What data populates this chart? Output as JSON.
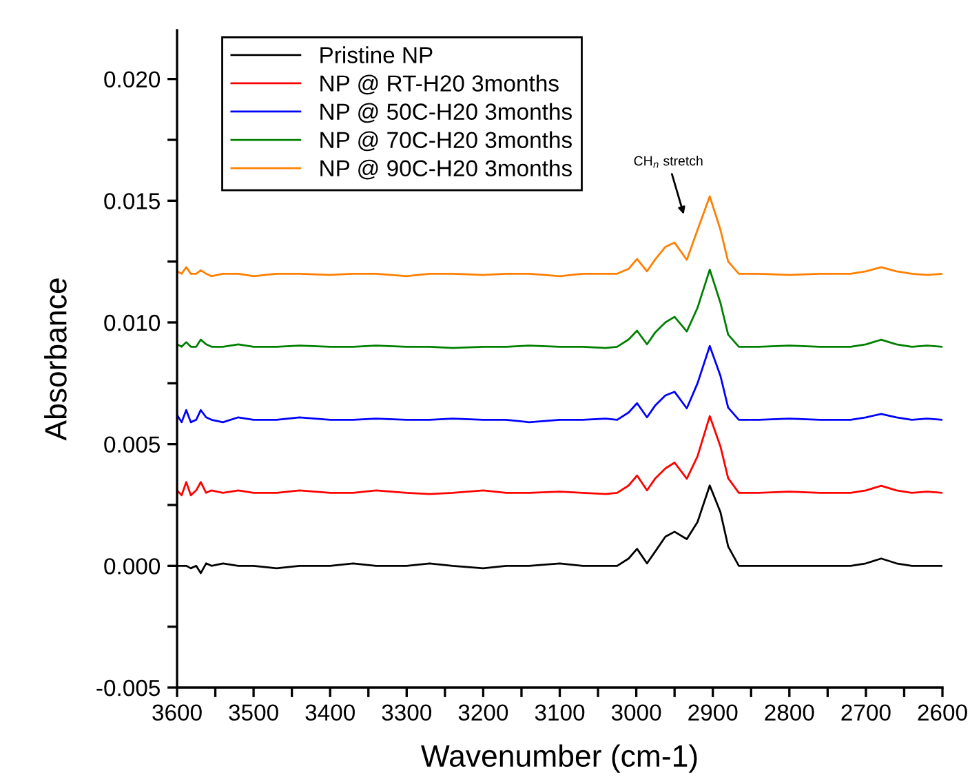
{
  "chart_data": {
    "type": "line",
    "xlabel": "Wavenumber (cm-1)",
    "ylabel": "Absorbance",
    "x": [
      3600,
      3594,
      3588,
      3582,
      3575,
      3569,
      3562,
      3555,
      3540,
      3520,
      3500,
      3470,
      3440,
      3400,
      3370,
      3340,
      3300,
      3270,
      3240,
      3200,
      3170,
      3140,
      3100,
      3070,
      3040,
      3025,
      3010,
      2999,
      2986,
      2975,
      2962,
      2950,
      2934,
      2920,
      2904,
      2890,
      2880,
      2866,
      2840,
      2800,
      2760,
      2720,
      2700,
      2680,
      2660,
      2640,
      2620,
      2600
    ],
    "series": [
      {
        "name": "Pristine NP",
        "color": "#000000",
        "values": [
          0,
          0,
          0,
          -0.0001,
          0,
          -0.0003,
          0.0001,
          0,
          0.0001,
          0,
          0,
          -0.0001,
          0,
          0,
          0.0001,
          0,
          0,
          0.0001,
          0,
          -0.0001,
          0,
          0,
          0.0001,
          0,
          0,
          0,
          0.0003,
          0.0007,
          0.0001,
          0.0006,
          0.0012,
          0.0014,
          0.0011,
          0.0018,
          0.0033,
          0.0022,
          0.0008,
          0,
          0,
          0,
          0,
          0,
          0.0001,
          0.0003,
          0.0001,
          0,
          0,
          0
        ]
      },
      {
        "name": "NP @ RT-H20 3months",
        "color": "#ff0000",
        "values": [
          0.0031,
          0.0029,
          0.00344,
          0.0029,
          0.0031,
          0.00344,
          0.003,
          0.0031,
          0.003,
          0.0031,
          0.003,
          0.003,
          0.0031,
          0.003,
          0.003,
          0.0031,
          0.003,
          0.00295,
          0.003,
          0.0031,
          0.003,
          0.003,
          0.00305,
          0.003,
          0.00295,
          0.003,
          0.0033,
          0.00371,
          0.0031,
          0.0036,
          0.004,
          0.00424,
          0.00358,
          0.0045,
          0.00615,
          0.0049,
          0.0036,
          0.003,
          0.003,
          0.00305,
          0.003,
          0.003,
          0.0031,
          0.00329,
          0.0031,
          0.003,
          0.00305,
          0.003
        ]
      },
      {
        "name": "NP @ 50C-H20 3months",
        "color": "#0000ff",
        "values": [
          0.0062,
          0.0059,
          0.0064,
          0.0059,
          0.006,
          0.0064,
          0.0061,
          0.006,
          0.0059,
          0.0061,
          0.006,
          0.006,
          0.0061,
          0.006,
          0.006,
          0.00605,
          0.006,
          0.006,
          0.00605,
          0.006,
          0.006,
          0.0059,
          0.006,
          0.006,
          0.00605,
          0.006,
          0.0063,
          0.00668,
          0.0061,
          0.0066,
          0.007,
          0.00715,
          0.00647,
          0.0075,
          0.00903,
          0.0078,
          0.0065,
          0.006,
          0.006,
          0.00605,
          0.006,
          0.006,
          0.0061,
          0.00624,
          0.0061,
          0.006,
          0.00605,
          0.006
        ]
      },
      {
        "name": "NP @ 70C-H20 3months",
        "color": "#008000",
        "values": [
          0.0091,
          0.009,
          0.00919,
          0.009,
          0.009,
          0.00929,
          0.0091,
          0.009,
          0.009,
          0.0091,
          0.009,
          0.009,
          0.00905,
          0.009,
          0.009,
          0.00905,
          0.009,
          0.009,
          0.00895,
          0.009,
          0.009,
          0.00905,
          0.009,
          0.009,
          0.00895,
          0.009,
          0.0093,
          0.00966,
          0.0091,
          0.0096,
          0.01,
          0.01023,
          0.00963,
          0.0106,
          0.01217,
          0.0108,
          0.0095,
          0.009,
          0.009,
          0.00905,
          0.009,
          0.009,
          0.0091,
          0.00929,
          0.0091,
          0.009,
          0.00905,
          0.009
        ]
      },
      {
        "name": "NP @ 90C-H20 3months",
        "color": "#ff8000",
        "values": [
          0.0121,
          0.012,
          0.01227,
          0.012,
          0.012,
          0.01214,
          0.012,
          0.0119,
          0.012,
          0.012,
          0.0119,
          0.012,
          0.012,
          0.01195,
          0.012,
          0.012,
          0.0119,
          0.012,
          0.012,
          0.01195,
          0.012,
          0.012,
          0.0119,
          0.012,
          0.012,
          0.012,
          0.0122,
          0.01261,
          0.0121,
          0.0126,
          0.0131,
          0.01328,
          0.01257,
          0.0138,
          0.01518,
          0.0138,
          0.0125,
          0.012,
          0.012,
          0.01195,
          0.012,
          0.012,
          0.0121,
          0.01227,
          0.0121,
          0.012,
          0.01195,
          0.012
        ]
      }
    ],
    "xlim": [
      3600,
      2600
    ],
    "xticks": [
      3600,
      {
        "value": 3550,
        "label": null
      },
      3500,
      {
        "value": 3450,
        "label": null
      },
      3400,
      {
        "value": 3350,
        "label": null
      },
      3300,
      {
        "value": 3250,
        "label": null
      },
      3200,
      {
        "value": 3150,
        "label": null
      },
      3100,
      {
        "value": 3050,
        "label": null
      },
      3000,
      {
        "value": 2950,
        "label": null
      },
      2900,
      {
        "value": 2850,
        "label": null
      },
      2800,
      {
        "value": 2750,
        "label": null
      },
      2700,
      {
        "value": 2650,
        "label": null
      },
      2600
    ],
    "ylim": [
      -0.005,
      0.022
    ],
    "yticks": [
      {
        "value": -0.005,
        "label": "-0.005"
      },
      {
        "value": -0.0025,
        "label": null
      },
      {
        "value": 0,
        "label": "0.000"
      },
      {
        "value": 0.0025,
        "label": null
      },
      {
        "value": 0.005,
        "label": "0.005"
      },
      {
        "value": 0.0075,
        "label": null
      },
      {
        "value": 0.01,
        "label": "0.010"
      },
      {
        "value": 0.0125,
        "label": null
      },
      {
        "value": 0.015,
        "label": "0.015"
      },
      {
        "value": 0.0175,
        "label": null
      },
      {
        "value": 0.02,
        "label": "0.020"
      }
    ],
    "annotations": [
      "CH$_{n}$ stretch"
    ],
    "legend": "top left",
    "grid": false,
    "marker": "none",
    "line_style": "solid"
  }
}
